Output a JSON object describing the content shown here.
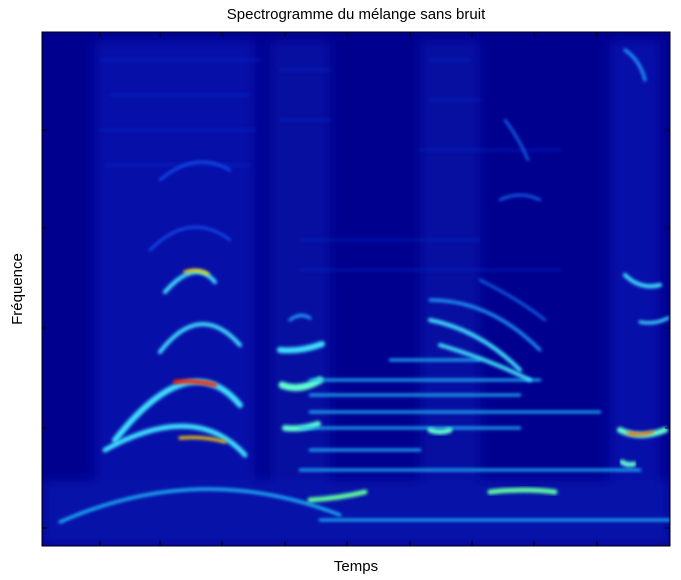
{
  "chart_data": {
    "type": "spectrogram",
    "title": "Spectrogramme du mélange sans bruit",
    "x_label": "Temps",
    "y_label": "Fréquence"
  }
}
